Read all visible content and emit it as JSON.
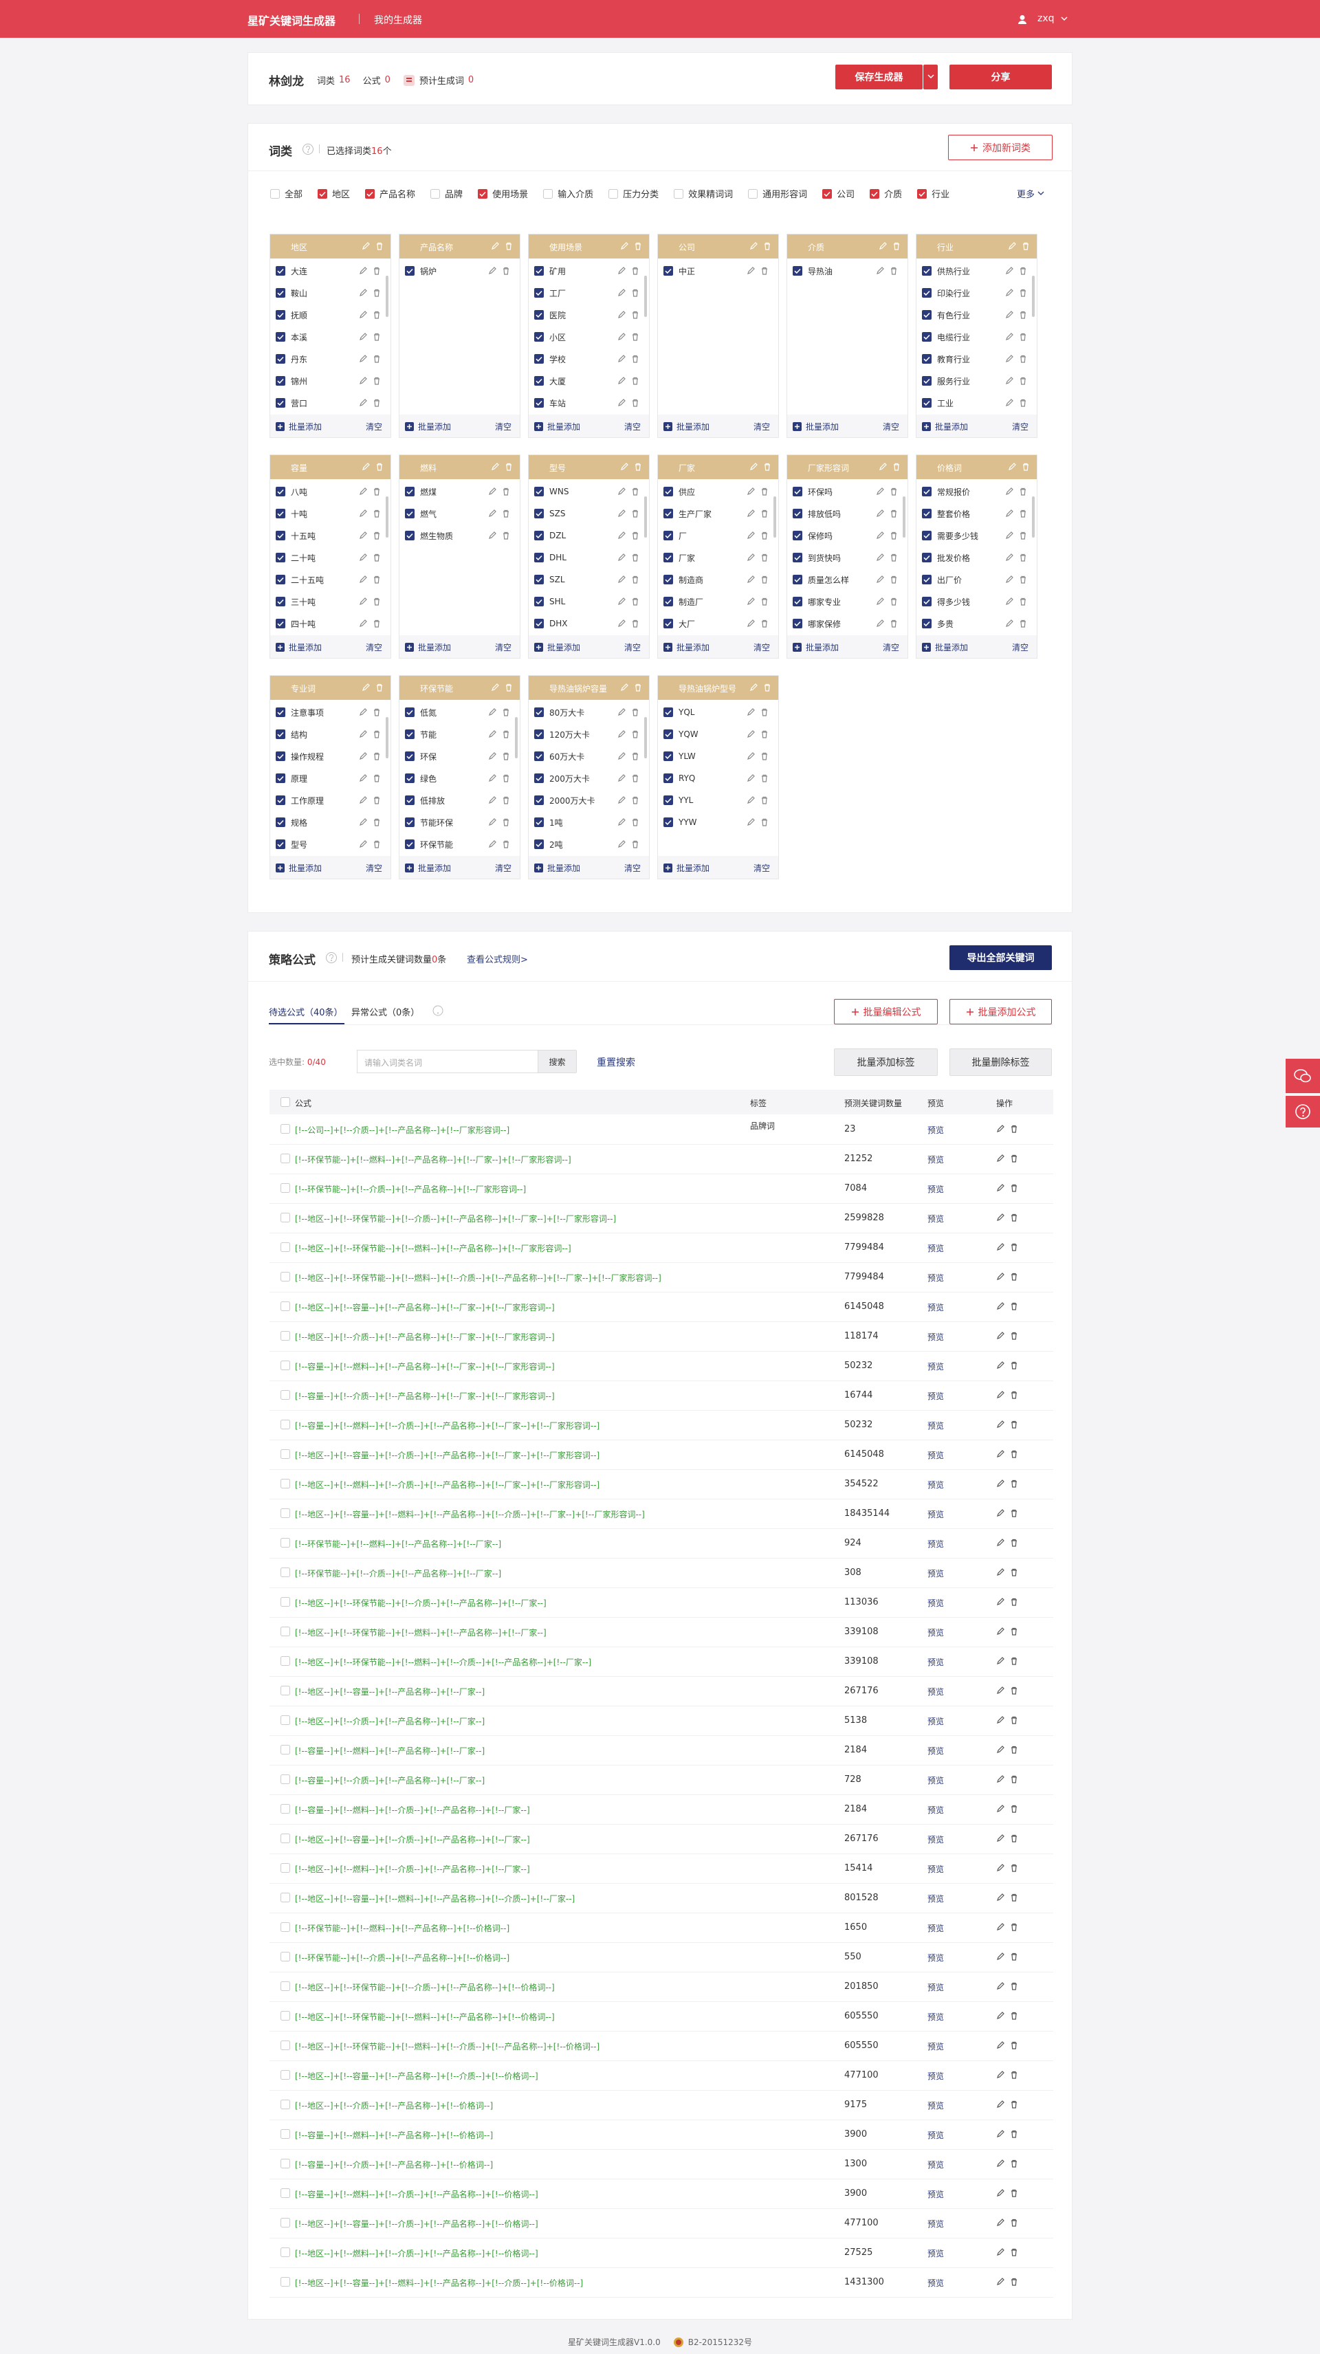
{
  "header": {
    "brand": "星矿关键词生成器",
    "nav": "我的生成器",
    "user": "zxq"
  },
  "profile": {
    "name": "林剑龙",
    "word_class_label": "词类",
    "word_class_count": 16,
    "formula_label": "公式",
    "formula_count": 0,
    "estimate_label": "预计生成词",
    "estimate_count": 0,
    "save_button": "保存生成器",
    "share_button": "分享"
  },
  "word_classes": {
    "title": "词类",
    "selected_prefix": "已选择词类",
    "selected_count": 16,
    "selected_suffix": "个",
    "add_button": "添加新词类",
    "more": "更多",
    "batch_add": "批量添加",
    "clear": "清空",
    "filters": [
      {
        "label": "全部",
        "checked": false
      },
      {
        "label": "地区",
        "checked": true
      },
      {
        "label": "产品名称",
        "checked": true
      },
      {
        "label": "品牌",
        "checked": false
      },
      {
        "label": "使用场景",
        "checked": true
      },
      {
        "label": "输入介质",
        "checked": false
      },
      {
        "label": "压力分类",
        "checked": false
      },
      {
        "label": "效果精词词",
        "checked": false
      },
      {
        "label": "通用形容词",
        "checked": false
      },
      {
        "label": "公司",
        "checked": true
      },
      {
        "label": "介质",
        "checked": true
      },
      {
        "label": "行业",
        "checked": true
      }
    ],
    "groups": [
      {
        "title": "地区",
        "items": [
          "大连",
          "鞍山",
          "抚顺",
          "本溪",
          "丹东",
          "锦州",
          "营口"
        ]
      },
      {
        "title": "产品名称",
        "items": [
          "锅炉"
        ]
      },
      {
        "title": "使用场景",
        "items": [
          "矿用",
          "工厂",
          "医院",
          "小区",
          "学校",
          "大厦",
          "车站"
        ]
      },
      {
        "title": "公司",
        "items": [
          "中正"
        ]
      },
      {
        "title": "介质",
        "items": [
          "导热油"
        ]
      },
      {
        "title": "行业",
        "items": [
          "供热行业",
          "印染行业",
          "有色行业",
          "电缆行业",
          "教育行业",
          "服务行业",
          "工业"
        ]
      },
      {
        "title": "容量",
        "items": [
          "八吨",
          "十吨",
          "十五吨",
          "二十吨",
          "二十五吨",
          "三十吨",
          "四十吨"
        ]
      },
      {
        "title": "燃料",
        "items": [
          "燃煤",
          "燃气",
          "燃生物质"
        ]
      },
      {
        "title": "型号",
        "items": [
          "WNS",
          "SZS",
          "DZL",
          "DHL",
          "SZL",
          "SHL",
          "DHX"
        ]
      },
      {
        "title": "厂家",
        "items": [
          "供应",
          "生产厂家",
          "厂",
          "厂家",
          "制造商",
          "制造厂",
          "大厂"
        ]
      },
      {
        "title": "厂家形容词",
        "items": [
          "环保吗",
          "排放低吗",
          "保修吗",
          "到货快吗",
          "质量怎么样",
          "哪家专业",
          "哪家保修"
        ]
      },
      {
        "title": "价格词",
        "items": [
          "常规报价",
          "整套价格",
          "需要多少钱",
          "批发价格",
          "出厂价",
          "得多少钱",
          "多贵"
        ]
      },
      {
        "title": "专业词",
        "items": [
          "注意事项",
          "结构",
          "操作规程",
          "原理",
          "工作原理",
          "规格",
          "型号"
        ]
      },
      {
        "title": "环保节能",
        "items": [
          "低氮",
          "节能",
          "环保",
          "绿色",
          "低排放",
          "节能环保",
          "环保节能"
        ]
      },
      {
        "title": "导热油锅炉容量",
        "items": [
          "80万大卡",
          "120万大卡",
          "60万大卡",
          "200万大卡",
          "2000万大卡",
          "1吨",
          "2吨"
        ]
      },
      {
        "title": "导热油锅炉型号",
        "items": [
          "YQL",
          "YQW",
          "YLW",
          "RYQ",
          "YYL",
          "YYW"
        ]
      }
    ]
  },
  "formulas": {
    "title": "策略公式",
    "estimate_prefix": "预计生成关键词数量",
    "estimate_count": 0,
    "estimate_suffix": "条",
    "rules_link": "查看公式规则>",
    "export_button": "导出全部关键词",
    "tabs": [
      "待选公式（40条）",
      "异常公式（0条）"
    ],
    "batch_edit": "批量编辑公式",
    "batch_add": "批量添加公式",
    "selected_label": "选中数量:",
    "selected": "0/40",
    "search_placeholder": "请输入词类名词",
    "search_button": "搜索",
    "reset_search": "重置搜索",
    "add_tag": "批量添加标签",
    "remove_tag": "批量删除标签",
    "columns": [
      "公式",
      "标签",
      "预测关键词数量",
      "预览",
      "操作"
    ],
    "preview": "预览",
    "rows": [
      {
        "formula": "[!--公司--]+[!--介质--]+[!--产品名称--]+[!--厂家形容词--]",
        "tag": "品牌词",
        "count": 23
      },
      {
        "formula": "[!--环保节能--]+[!--燃料--]+[!--产品名称--]+[!--厂家--]+[!--厂家形容词--]",
        "count": 21252
      },
      {
        "formula": "[!--环保节能--]+[!--介质--]+[!--产品名称--]+[!--厂家形容词--]",
        "count": 7084
      },
      {
        "formula": "[!--地区--]+[!--环保节能--]+[!--介质--]+[!--产品名称--]+[!--厂家--]+[!--厂家形容词--]",
        "count": 2599828
      },
      {
        "formula": "[!--地区--]+[!--环保节能--]+[!--燃料--]+[!--产品名称--]+[!--厂家形容词--]",
        "count": 7799484
      },
      {
        "formula": "[!--地区--]+[!--环保节能--]+[!--燃料--]+[!--介质--]+[!--产品名称--]+[!--厂家--]+[!--厂家形容词--]",
        "count": 7799484
      },
      {
        "formula": "[!--地区--]+[!--容量--]+[!--产品名称--]+[!--厂家--]+[!--厂家形容词--]",
        "count": 6145048
      },
      {
        "formula": "[!--地区--]+[!--介质--]+[!--产品名称--]+[!--厂家--]+[!--厂家形容词--]",
        "count": 118174
      },
      {
        "formula": "[!--容量--]+[!--燃料--]+[!--产品名称--]+[!--厂家--]+[!--厂家形容词--]",
        "count": 50232
      },
      {
        "formula": "[!--容量--]+[!--介质--]+[!--产品名称--]+[!--厂家--]+[!--厂家形容词--]",
        "count": 16744
      },
      {
        "formula": "[!--容量--]+[!--燃料--]+[!--介质--]+[!--产品名称--]+[!--厂家--]+[!--厂家形容词--]",
        "count": 50232
      },
      {
        "formula": "[!--地区--]+[!--容量--]+[!--介质--]+[!--产品名称--]+[!--厂家--]+[!--厂家形容词--]",
        "count": 6145048
      },
      {
        "formula": "[!--地区--]+[!--燃料--]+[!--介质--]+[!--产品名称--]+[!--厂家--]+[!--厂家形容词--]",
        "count": 354522
      },
      {
        "formula": "[!--地区--]+[!--容量--]+[!--燃料--]+[!--产品名称--]+[!--介质--]+[!--厂家--]+[!--厂家形容词--]",
        "count": 18435144
      },
      {
        "formula": "[!--环保节能--]+[!--燃料--]+[!--产品名称--]+[!--厂家--]",
        "count": 924
      },
      {
        "formula": "[!--环保节能--]+[!--介质--]+[!--产品名称--]+[!--厂家--]",
        "count": 308
      },
      {
        "formula": "[!--地区--]+[!--环保节能--]+[!--介质--]+[!--产品名称--]+[!--厂家--]",
        "count": 113036
      },
      {
        "formula": "[!--地区--]+[!--环保节能--]+[!--燃料--]+[!--产品名称--]+[!--厂家--]",
        "count": 339108
      },
      {
        "formula": "[!--地区--]+[!--环保节能--]+[!--燃料--]+[!--介质--]+[!--产品名称--]+[!--厂家--]",
        "count": 339108
      },
      {
        "formula": "[!--地区--]+[!--容量--]+[!--产品名称--]+[!--厂家--]",
        "count": 267176
      },
      {
        "formula": "[!--地区--]+[!--介质--]+[!--产品名称--]+[!--厂家--]",
        "count": 5138
      },
      {
        "formula": "[!--容量--]+[!--燃料--]+[!--产品名称--]+[!--厂家--]",
        "count": 2184
      },
      {
        "formula": "[!--容量--]+[!--介质--]+[!--产品名称--]+[!--厂家--]",
        "count": 728
      },
      {
        "formula": "[!--容量--]+[!--燃料--]+[!--介质--]+[!--产品名称--]+[!--厂家--]",
        "count": 2184
      },
      {
        "formula": "[!--地区--]+[!--容量--]+[!--介质--]+[!--产品名称--]+[!--厂家--]",
        "count": 267176
      },
      {
        "formula": "[!--地区--]+[!--燃料--]+[!--介质--]+[!--产品名称--]+[!--厂家--]",
        "count": 15414
      },
      {
        "formula": "[!--地区--]+[!--容量--]+[!--燃料--]+[!--产品名称--]+[!--介质--]+[!--厂家--]",
        "count": 801528
      },
      {
        "formula": "[!--环保节能--]+[!--燃料--]+[!--产品名称--]+[!--价格词--]",
        "count": 1650
      },
      {
        "formula": "[!--环保节能--]+[!--介质--]+[!--产品名称--]+[!--价格词--]",
        "count": 550
      },
      {
        "formula": "[!--地区--]+[!--环保节能--]+[!--介质--]+[!--产品名称--]+[!--价格词--]",
        "count": 201850
      },
      {
        "formula": "[!--地区--]+[!--环保节能--]+[!--燃料--]+[!--产品名称--]+[!--价格词--]",
        "count": 605550
      },
      {
        "formula": "[!--地区--]+[!--环保节能--]+[!--燃料--]+[!--介质--]+[!--产品名称--]+[!--价格词--]",
        "count": 605550
      },
      {
        "formula": "[!--地区--]+[!--容量--]+[!--产品名称--]+[!--介质--]+[!--价格词--]",
        "count": 477100
      },
      {
        "formula": "[!--地区--]+[!--介质--]+[!--产品名称--]+[!--价格词--]",
        "count": 9175
      },
      {
        "formula": "[!--容量--]+[!--燃料--]+[!--产品名称--]+[!--价格词--]",
        "count": 3900
      },
      {
        "formula": "[!--容量--]+[!--介质--]+[!--产品名称--]+[!--价格词--]",
        "count": 1300
      },
      {
        "formula": "[!--容量--]+[!--燃料--]+[!--介质--]+[!--产品名称--]+[!--价格词--]",
        "count": 3900
      },
      {
        "formula": "[!--地区--]+[!--容量--]+[!--介质--]+[!--产品名称--]+[!--价格词--]",
        "count": 477100
      },
      {
        "formula": "[!--地区--]+[!--燃料--]+[!--介质--]+[!--产品名称--]+[!--价格词--]",
        "count": 27525
      },
      {
        "formula": "[!--地区--]+[!--容量--]+[!--燃料--]+[!--产品名称--]+[!--介质--]+[!--价格词--]",
        "count": 1431300
      }
    ]
  },
  "footer": {
    "version": "星矿关键词生成器V1.0.0",
    "license": "B2-20151232号"
  }
}
